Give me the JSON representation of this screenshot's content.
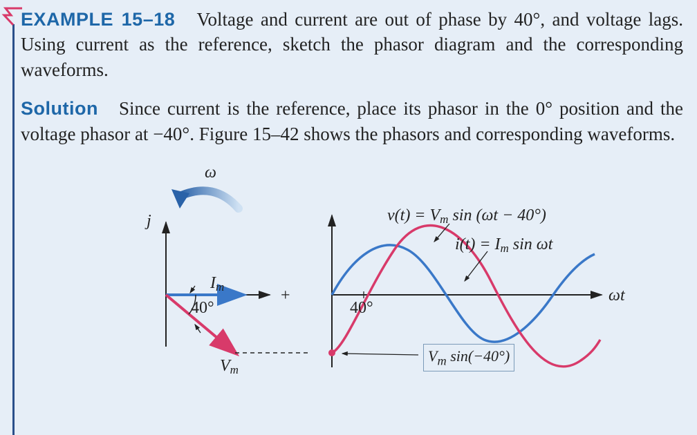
{
  "header": {
    "example_label": "EXAMPLE 15–18",
    "problem_text_1": "Voltage and current are out of phase by 40°, and voltage lags. Using current as the reference, sketch the phasor diagram and the corresponding waveforms."
  },
  "solution": {
    "label": "Solution",
    "text": "Since current is the reference, place its phasor in the 0° position and the voltage phasor at −40°. Figure 15–42 shows the phasors and corresponding waveforms."
  },
  "figure": {
    "omega_label": "ω",
    "j_label": "j",
    "Im_label_html": "I<sub class='sub'>m</sub>",
    "Vm_label_html": "V<sub class='sub'>m</sub>",
    "angle_label": "40°",
    "plus_label": "+",
    "wt_label": "ωt",
    "v_eq_html": "v(t) = V<sub class='sub'>m</sub> sin (ωt − 40°)",
    "i_eq_html": "i(t) = I<sub class='sub'>m</sub> sin ωt",
    "box_eq_html": "V<sub class='sub'>m</sub> sin(−40°)"
  },
  "style": {
    "colors": {
      "bg": "#e6eef7",
      "accent": "#1e67a8",
      "axis": "#222222",
      "current_wave": "#3a78c8",
      "voltage_wave": "#d83a6a",
      "omega_arrow_light": "#9fc3e8",
      "omega_arrow_dark": "#2a62a8"
    },
    "font_body_size": 27,
    "font_label_size": 24,
    "phasor": {
      "angle_deg": 40,
      "Im_len": 110,
      "Vm_len": 130
    },
    "waveforms": {
      "phase_offset_deg": 40,
      "Im_amp": 62,
      "Vm_amp": 86,
      "cycles_shown": 1.3
    }
  }
}
